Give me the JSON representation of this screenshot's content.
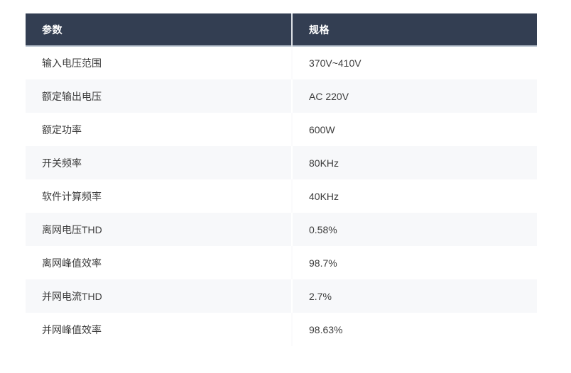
{
  "table": {
    "columns": [
      {
        "label": "参数"
      },
      {
        "label": "规格"
      }
    ],
    "rows": [
      {
        "param": "输入电压范围",
        "spec": "370V~410V"
      },
      {
        "param": "额定输出电压",
        "spec": "AC 220V"
      },
      {
        "param": "额定功率",
        "spec": "600W"
      },
      {
        "param": "开关频率",
        "spec": "80KHz"
      },
      {
        "param": "软件计算频率",
        "spec": "40KHz"
      },
      {
        "param": "离网电压THD",
        "spec": "0.58%"
      },
      {
        "param": "离网峰值效率",
        "spec": "98.7%"
      },
      {
        "param": "并网电流THD",
        "spec": "2.7%"
      },
      {
        "param": "并网峰值效率",
        "spec": "98.63%"
      }
    ],
    "colors": {
      "header_bg": "#333e52",
      "header_text": "#ffffff",
      "header_underline": "#c2cbd6",
      "row_bg": "#ffffff",
      "row_alt_bg": "#f7f8fa",
      "body_text": "#3c3c3c",
      "column_divider": "#ffffff"
    }
  }
}
